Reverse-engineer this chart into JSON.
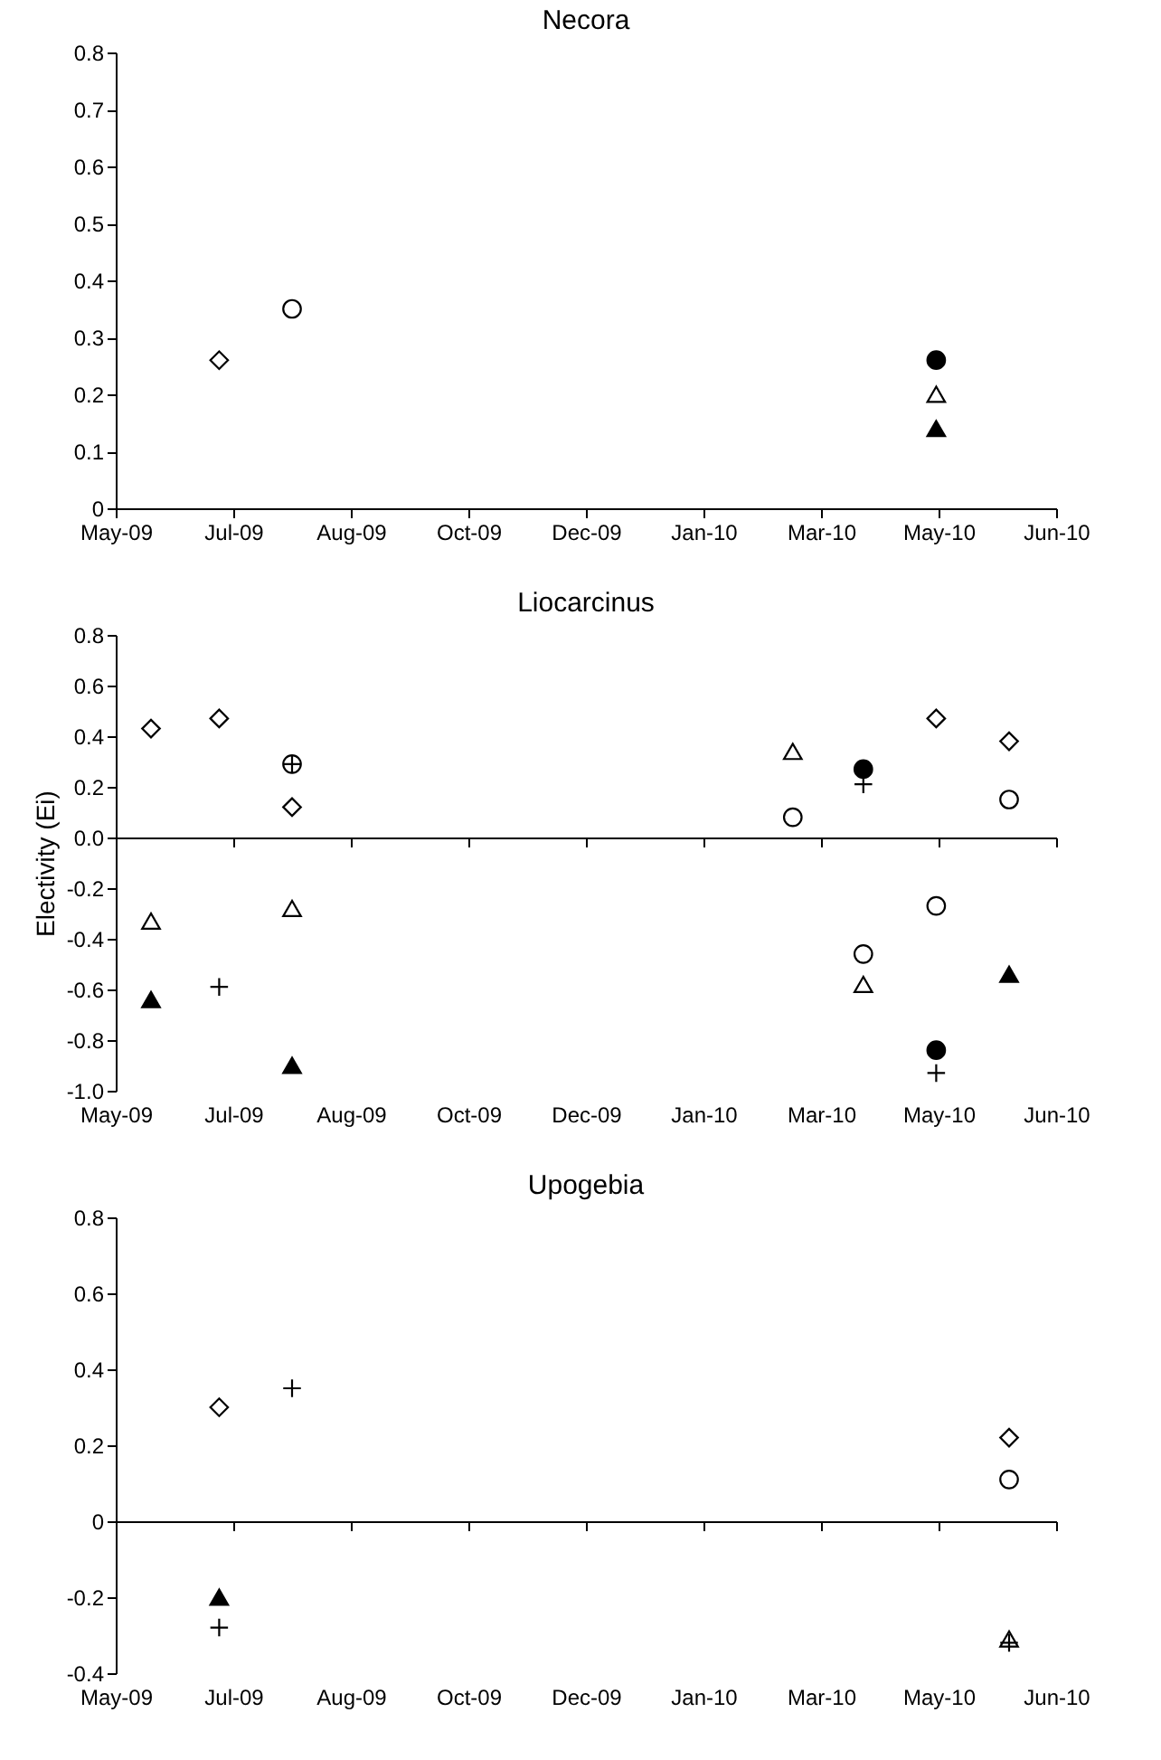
{
  "chart_data": [
    {
      "type": "scatter",
      "title": "Necora",
      "xlim": [
        "2009-05-18",
        "2010-06-22"
      ],
      "xticks": [
        {
          "value": "2009-05-18",
          "label": "May-09"
        },
        {
          "value": "2009-07-07",
          "label": "Jul-09"
        },
        {
          "value": "2009-08-26",
          "label": "Aug-09"
        },
        {
          "value": "2009-10-15",
          "label": "Oct-09"
        },
        {
          "value": "2009-12-04",
          "label": "Dec-09"
        },
        {
          "value": "2010-01-23",
          "label": "Jan-10"
        },
        {
          "value": "2010-03-14",
          "label": "Mar-10"
        },
        {
          "value": "2010-05-03",
          "label": "May-10"
        },
        {
          "value": "2010-06-22",
          "label": "Jun-10"
        }
      ],
      "ylim": [
        0,
        0.8
      ],
      "yticks": [
        0,
        0.1,
        0.2,
        0.3,
        0.4,
        0.5,
        0.6,
        0.7,
        0.8
      ],
      "series": [
        {
          "marker": "diamond",
          "color": "#ffffff",
          "x": [
            "2009-07-01"
          ],
          "values": [
            0.26
          ]
        },
        {
          "marker": "circle",
          "color": "#ffffff",
          "x": [
            "2009-08-01"
          ],
          "values": [
            0.35
          ]
        },
        {
          "marker": "circle",
          "color": "#000000",
          "x": [
            "2010-05-02"
          ],
          "values": [
            0.26
          ]
        },
        {
          "marker": "triangle",
          "color": "#ffffff",
          "x": [
            "2010-05-02"
          ],
          "values": [
            0.2
          ]
        },
        {
          "marker": "triangle",
          "color": "#000000",
          "x": [
            "2010-05-02"
          ],
          "values": [
            0.14
          ]
        }
      ]
    },
    {
      "type": "scatter",
      "title": "Liocarcinus",
      "ylabel": "Electivity (Ei)",
      "xlim": [
        "2009-05-18",
        "2010-06-22"
      ],
      "xticks": [
        {
          "value": "2009-05-18",
          "label": "May-09"
        },
        {
          "value": "2009-07-07",
          "label": "Jul-09"
        },
        {
          "value": "2009-08-26",
          "label": "Aug-09"
        },
        {
          "value": "2009-10-15",
          "label": "Oct-09"
        },
        {
          "value": "2009-12-04",
          "label": "Dec-09"
        },
        {
          "value": "2010-01-23",
          "label": "Jan-10"
        },
        {
          "value": "2010-03-14",
          "label": "Mar-10"
        },
        {
          "value": "2010-05-03",
          "label": "May-10"
        },
        {
          "value": "2010-06-22",
          "label": "Jun-10"
        }
      ],
      "ylim": [
        -1,
        0.8
      ],
      "yticks": [
        {
          "value": -1,
          "label": "-1.0"
        },
        -0.8,
        -0.6,
        -0.4,
        -0.2,
        {
          "value": 0,
          "label": "0.0"
        },
        0.2,
        0.4,
        0.6,
        0.8
      ],
      "series": [
        {
          "marker": "diamond",
          "color": "#ffffff",
          "x": [
            "2009-06-02",
            "2009-07-01",
            "2009-08-01",
            "2010-05-02",
            "2010-06-02"
          ],
          "values": [
            0.43,
            0.47,
            0.12,
            0.47,
            0.38
          ]
        },
        {
          "marker": "circle",
          "color": "#ffffff",
          "x": [
            "2009-08-01",
            "2010-03-02",
            "2010-04-01",
            "2010-05-02",
            "2010-06-02"
          ],
          "values": [
            0.29,
            0.08,
            -0.46,
            -0.27,
            0.15
          ]
        },
        {
          "marker": "circle",
          "color": "#000000",
          "x": [
            "2010-04-01",
            "2010-05-02"
          ],
          "values": [
            0.27,
            -0.84
          ]
        },
        {
          "marker": "triangle",
          "color": "#ffffff",
          "x": [
            "2009-06-02",
            "2009-08-01",
            "2010-03-02",
            "2010-04-01"
          ],
          "values": [
            -0.33,
            -0.28,
            0.34,
            -0.58
          ]
        },
        {
          "marker": "triangle",
          "color": "#000000",
          "x": [
            "2009-06-02",
            "2009-08-01",
            "2010-06-02"
          ],
          "values": [
            -0.64,
            -0.9,
            -0.54
          ]
        },
        {
          "marker": "cross",
          "color": "#000000",
          "x": [
            "2009-07-01",
            "2009-08-01",
            "2010-04-01",
            "2010-05-02"
          ],
          "values": [
            -0.59,
            0.29,
            0.21,
            -0.93
          ]
        }
      ]
    },
    {
      "type": "scatter",
      "title": "Upogebia",
      "xlim": [
        "2009-05-18",
        "2010-06-22"
      ],
      "xticks": [
        {
          "value": "2009-05-18",
          "label": "May-09"
        },
        {
          "value": "2009-07-07",
          "label": "Jul-09"
        },
        {
          "value": "2009-08-26",
          "label": "Aug-09"
        },
        {
          "value": "2009-10-15",
          "label": "Oct-09"
        },
        {
          "value": "2009-12-04",
          "label": "Dec-09"
        },
        {
          "value": "2010-01-23",
          "label": "Jan-10"
        },
        {
          "value": "2010-03-14",
          "label": "Mar-10"
        },
        {
          "value": "2010-05-03",
          "label": "May-10"
        },
        {
          "value": "2010-06-22",
          "label": "Jun-10"
        }
      ],
      "ylim": [
        -0.4,
        0.8
      ],
      "yticks": [
        -0.4,
        -0.2,
        0,
        0.2,
        0.4,
        0.6,
        0.8
      ],
      "series": [
        {
          "marker": "diamond",
          "color": "#ffffff",
          "x": [
            "2009-07-01",
            "2010-06-02"
          ],
          "values": [
            0.3,
            0.22
          ]
        },
        {
          "marker": "circle",
          "color": "#ffffff",
          "x": [
            "2010-06-02"
          ],
          "values": [
            0.11
          ]
        },
        {
          "marker": "triangle",
          "color": "#ffffff",
          "x": [
            "2010-06-02"
          ],
          "values": [
            -0.31
          ]
        },
        {
          "marker": "triangle",
          "color": "#000000",
          "x": [
            "2009-07-01"
          ],
          "values": [
            -0.2
          ]
        },
        {
          "marker": "cross",
          "color": "#000000",
          "x": [
            "2009-08-01",
            "2009-07-01",
            "2010-06-02"
          ],
          "values": [
            0.35,
            -0.28,
            -0.32
          ]
        }
      ]
    }
  ]
}
